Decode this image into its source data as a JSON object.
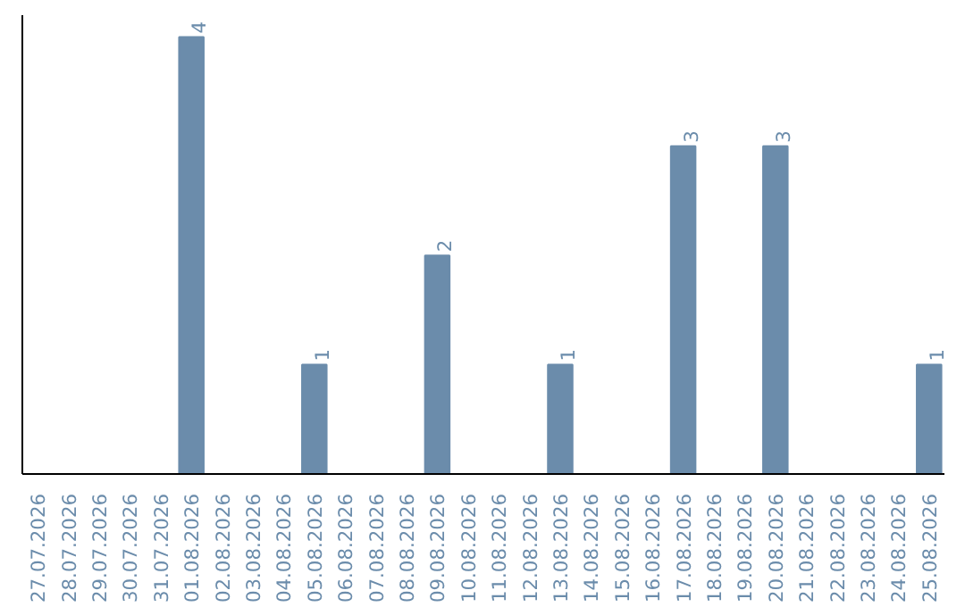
{
  "chart_data": {
    "type": "bar",
    "categories": [
      "27.07.2026",
      "28.07.2026",
      "29.07.2026",
      "30.07.2026",
      "31.07.2026",
      "01.08.2026",
      "02.08.2026",
      "03.08.2026",
      "04.08.2026",
      "05.08.2026",
      "06.08.2026",
      "07.08.2026",
      "08.08.2026",
      "09.08.2026",
      "10.08.2026",
      "11.08.2026",
      "12.08.2026",
      "13.08.2026",
      "14.08.2026",
      "15.08.2026",
      "16.08.2026",
      "17.08.2026",
      "18.08.2026",
      "19.08.2026",
      "20.08.2026",
      "21.08.2026",
      "22.08.2026",
      "23.08.2026",
      "24.08.2026",
      "25.08.2026"
    ],
    "values": [
      0,
      0,
      0,
      0,
      0,
      4,
      0,
      0,
      0,
      1,
      0,
      0,
      0,
      2,
      0,
      0,
      0,
      1,
      0,
      0,
      0,
      3,
      0,
      0,
      3,
      0,
      0,
      0,
      0,
      1
    ],
    "value_labels": [
      null,
      null,
      null,
      null,
      null,
      "4",
      null,
      null,
      null,
      "1",
      null,
      null,
      null,
      "2",
      null,
      null,
      null,
      "1",
      null,
      null,
      null,
      "3",
      null,
      null,
      "3",
      null,
      null,
      null,
      null,
      "1"
    ],
    "color": "#6b8cab",
    "ylim": [
      0,
      4.2
    ],
    "tick_labels": "x",
    "grid": false
  }
}
